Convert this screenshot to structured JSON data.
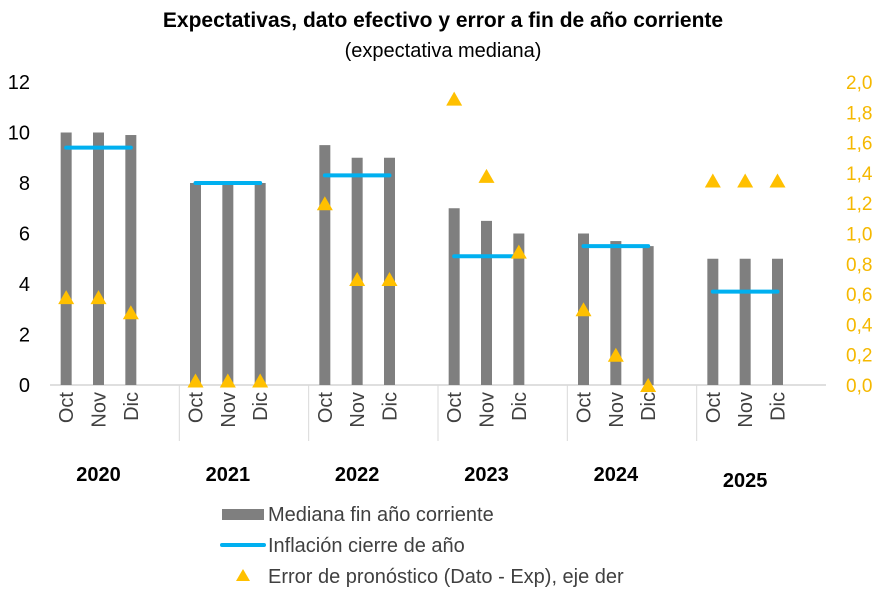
{
  "chart_data": {
    "type": "bar",
    "title": "Expectativas, dato efectivo y error a fin de año corriente",
    "subtitle": "(expectativa mediana)",
    "ylim": [
      0,
      12
    ],
    "yticks": [
      "0",
      "2",
      "4",
      "6",
      "8",
      "10",
      "12"
    ],
    "y2lim": [
      0,
      2
    ],
    "y2ticks": [
      "0,0",
      "0,2",
      "0,4",
      "0,6",
      "0,8",
      "1,0",
      "1,2",
      "1,4",
      "1,6",
      "1,8",
      "2,0"
    ],
    "groups": [
      {
        "year": "2020",
        "months": [
          "Oct",
          "Nov",
          "Dic"
        ],
        "median": [
          10.0,
          10.0,
          9.9
        ],
        "inflation": 9.4,
        "error": [
          0.58,
          0.58,
          0.48
        ]
      },
      {
        "year": "2021",
        "months": [
          "Oct",
          "Nov",
          "Dic"
        ],
        "median": [
          8.0,
          8.0,
          8.0
        ],
        "inflation": 8.0,
        "error": [
          0.03,
          0.03,
          0.03
        ]
      },
      {
        "year": "2022",
        "months": [
          "Oct",
          "Nov",
          "Dic"
        ],
        "median": [
          9.5,
          9.0,
          9.0
        ],
        "inflation": 8.3,
        "error": [
          1.2,
          0.7,
          0.7
        ]
      },
      {
        "year": "2023",
        "months": [
          "Oct",
          "Nov",
          "Dic"
        ],
        "median": [
          7.0,
          6.5,
          6.0
        ],
        "inflation": 5.1,
        "error": [
          1.89,
          1.38,
          0.88
        ]
      },
      {
        "year": "2024",
        "months": [
          "Oct",
          "Nov",
          "Dic"
        ],
        "median": [
          6.0,
          5.7,
          5.5
        ],
        "inflation": 5.5,
        "error": [
          0.5,
          0.2,
          0.0
        ]
      },
      {
        "year": "2025",
        "months": [
          "Oct",
          "Nov",
          "Dic"
        ],
        "median": [
          5.0,
          5.0,
          5.0
        ],
        "inflation": 3.7,
        "error": [
          1.35,
          1.35,
          1.35
        ]
      }
    ],
    "legend": [
      {
        "label": "Mediana fin año corriente",
        "color": "#7F7F7F",
        "marker": "bar"
      },
      {
        "label": "Inflación cierre de año",
        "color": "#00B0F0",
        "marker": "line"
      },
      {
        "label": "Error de pronóstico (Dato - Exp), eje der",
        "color": "#FFC000",
        "marker": "triangle"
      }
    ]
  }
}
